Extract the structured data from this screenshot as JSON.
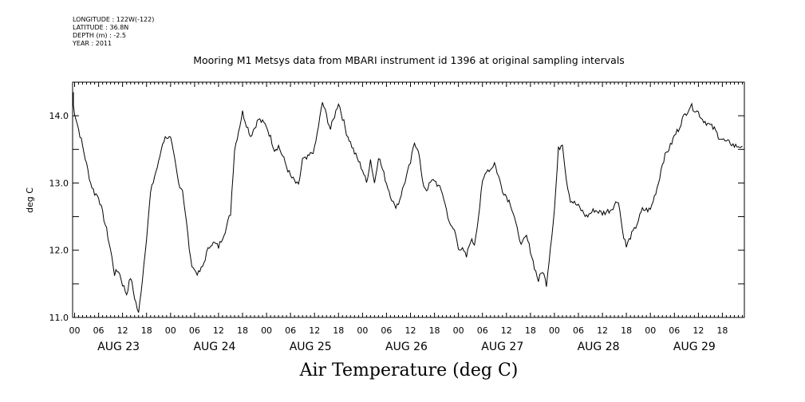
{
  "meta": {
    "longitude": "LONGITUDE : 122W(-122)",
    "latitude": "LATITUDE : 36.8N",
    "depth": "DEPTH (m) : -2.5",
    "year": "YEAR : 2011"
  },
  "chart_data": {
    "type": "line",
    "title": "Mooring M1 Metsys data from MBARI instrument id 1396 at original sampling intervals",
    "xlabel": "Air Temperature (deg C)",
    "ylabel": "deg C",
    "ylim": [
      11.0,
      14.5
    ],
    "yticks": [
      11.0,
      12.0,
      13.0,
      14.0
    ],
    "ytick_labels": [
      "11.0",
      "12.0",
      "13.0",
      "14.0"
    ],
    "x_unit": "hours since AUG 23 00",
    "xlim": [
      -0.5,
      167.5
    ],
    "hour_tick_labels": [
      "00",
      "06",
      "12",
      "18"
    ],
    "day_labels": [
      "AUG 23",
      "AUG 24",
      "AUG 25",
      "AUG 26",
      "AUG 27",
      "AUG 28",
      "AUG 29"
    ],
    "grid": false,
    "series": [
      {
        "color": "#000000",
        "x": [
          -1,
          0,
          2,
          4,
          5,
          6,
          7,
          8,
          9,
          10,
          11,
          12,
          13,
          14,
          15,
          16,
          17,
          18,
          19,
          20,
          21,
          22,
          23,
          24,
          25,
          26,
          27,
          28,
          29,
          30,
          31,
          32,
          33,
          34,
          35,
          36,
          37,
          38,
          39,
          40,
          42,
          44,
          46,
          48,
          50,
          51,
          52,
          54,
          56,
          57,
          58,
          60,
          62,
          64,
          66,
          68,
          70,
          72,
          73,
          74,
          75,
          76,
          78,
          80,
          81,
          82,
          84,
          85,
          86,
          87,
          88,
          89,
          90,
          91,
          92,
          93,
          94,
          95,
          96,
          97,
          98,
          99,
          100,
          101,
          102,
          103,
          104,
          105,
          106,
          107,
          108,
          109,
          110,
          111,
          112,
          113,
          114,
          115,
          116,
          117,
          118,
          120,
          121,
          122,
          123,
          124,
          126,
          128,
          129,
          130,
          132,
          134,
          136,
          137,
          138,
          139,
          140,
          141,
          142,
          143,
          144,
          145,
          146,
          147,
          148,
          149,
          150,
          151,
          152,
          153,
          154,
          155,
          156,
          157,
          158,
          159,
          160,
          161,
          162,
          163,
          164,
          165,
          166,
          167
        ],
        "values": [
          14.35,
          14.05,
          13.55,
          13.0,
          12.85,
          12.8,
          12.55,
          12.3,
          12.0,
          11.65,
          11.7,
          11.5,
          11.35,
          11.6,
          11.3,
          11.05,
          11.6,
          12.2,
          12.85,
          13.1,
          13.3,
          13.6,
          13.7,
          13.65,
          13.35,
          13.0,
          12.9,
          12.4,
          11.85,
          11.7,
          11.65,
          11.75,
          11.95,
          12.1,
          12.1,
          12.05,
          12.2,
          12.35,
          12.55,
          13.5,
          14.05,
          13.7,
          13.95,
          13.85,
          13.5,
          13.55,
          13.4,
          13.1,
          12.95,
          13.35,
          13.35,
          13.5,
          14.2,
          13.8,
          14.2,
          13.75,
          13.45,
          13.2,
          13.0,
          13.35,
          13.0,
          13.4,
          13.0,
          12.65,
          12.7,
          12.9,
          13.3,
          13.6,
          13.5,
          13.0,
          12.9,
          13.0,
          13.05,
          12.95,
          12.85,
          12.6,
          12.35,
          12.3,
          12.05,
          12.0,
          11.9,
          12.15,
          12.1,
          12.5,
          13.0,
          13.2,
          13.2,
          13.3,
          13.1,
          12.9,
          12.8,
          12.7,
          12.5,
          12.2,
          12.1,
          12.2,
          12.0,
          11.75,
          11.55,
          11.7,
          11.5,
          12.6,
          13.5,
          13.6,
          13.05,
          12.75,
          12.65,
          12.5,
          12.55,
          12.6,
          12.55,
          12.6,
          12.75,
          12.3,
          12.05,
          12.2,
          12.3,
          12.45,
          12.6,
          12.6,
          12.6,
          12.8,
          13.0,
          13.3,
          13.45,
          13.55,
          13.7,
          13.8,
          13.95,
          14.05,
          14.15,
          14.1,
          14.05,
          13.95,
          13.9,
          13.85,
          13.8,
          13.7,
          13.65,
          13.6,
          13.6,
          13.55,
          13.55,
          13.55
        ]
      }
    ]
  }
}
